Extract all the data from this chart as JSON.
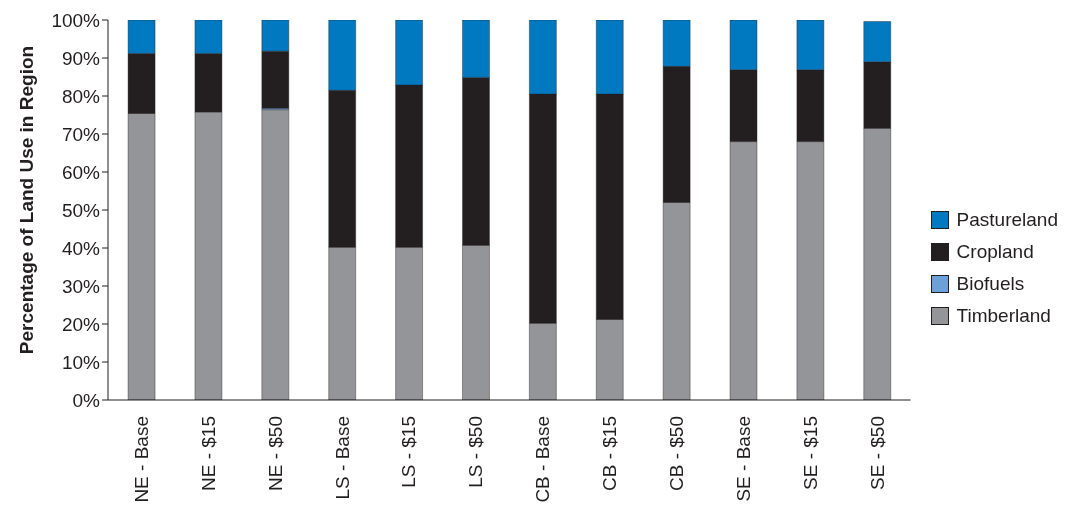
{
  "chart_data": {
    "type": "bar",
    "stacked": true,
    "ylabel": "Percentage of Land Use in Region",
    "categories": [
      "NE - Base",
      "NE - $15",
      "NE - $50",
      "LS - Base",
      "LS - $15",
      "LS - $50",
      "CB - Base",
      "CB - $15",
      "CB - $50",
      "SE - Base",
      "SE - $15",
      "SE - $50"
    ],
    "series": [
      {
        "name": "Timberland",
        "color": "#939598",
        "values": [
          75.4,
          75.8,
          76.4,
          40.2,
          40.2,
          40.7,
          20.2,
          21.2,
          52.0,
          68.0,
          68.0,
          71.5
        ]
      },
      {
        "name": "Biofuels",
        "color": "#6ca0d6",
        "values": [
          0,
          0,
          0.4,
          0,
          0,
          0,
          0,
          0,
          0,
          0,
          0,
          0
        ]
      },
      {
        "name": "Cropland",
        "color": "#231f20",
        "values": [
          15.8,
          15.4,
          15.0,
          41.3,
          42.7,
          44.2,
          60.3,
          59.3,
          35.8,
          18.9,
          18.9,
          17.5
        ]
      },
      {
        "name": "Pastureland",
        "color": "#0079c1",
        "values": [
          8.8,
          8.8,
          8.2,
          18.5,
          17.1,
          15.1,
          19.5,
          19.5,
          12.2,
          13.1,
          13.1,
          10.6
        ]
      }
    ],
    "ylim": [
      0,
      100
    ],
    "yticks": [
      {
        "value": 0,
        "label": "0%"
      },
      {
        "value": 10,
        "label": "10%"
      },
      {
        "value": 20,
        "label": "20%"
      },
      {
        "value": 30,
        "label": "30%"
      },
      {
        "value": 40,
        "label": "40%"
      },
      {
        "value": 50,
        "label": "50%"
      },
      {
        "value": 60,
        "label": "60%"
      },
      {
        "value": 70,
        "label": "70%"
      },
      {
        "value": 80,
        "label": "80%"
      },
      {
        "value": 90,
        "label": "90%"
      },
      {
        "value": 100,
        "label": "100%"
      }
    ],
    "grid": false,
    "legend": "right"
  }
}
